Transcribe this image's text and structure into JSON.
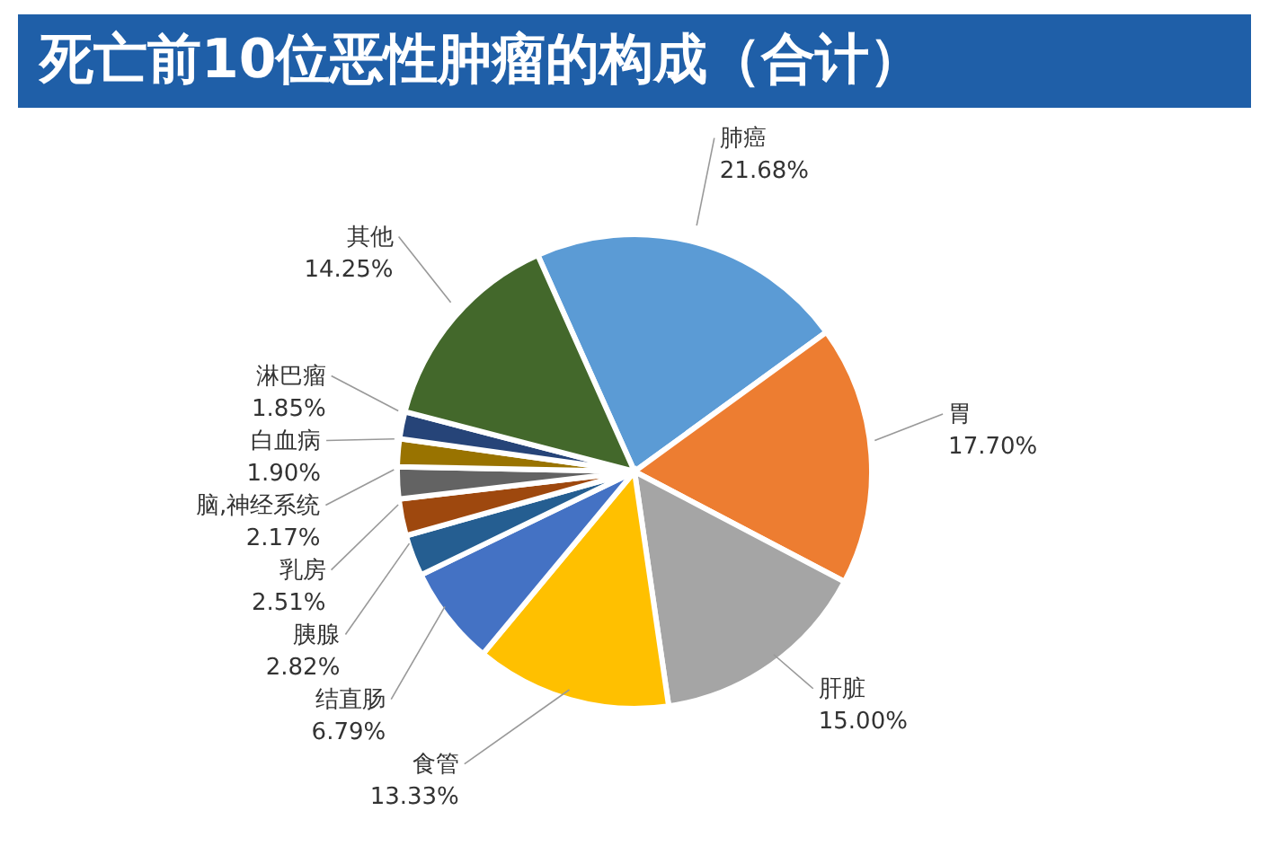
{
  "chart_data": {
    "type": "pie",
    "title": "死亡前10位恶性肿瘤的构成（合计）",
    "categories": [
      "肺癌",
      "胃",
      "肝脏",
      "食管",
      "结直肠",
      "胰腺",
      "乳房",
      "脑,神经系统",
      "白血病",
      "淋巴瘤",
      "其他"
    ],
    "values": [
      21.68,
      17.7,
      15.0,
      13.33,
      6.79,
      2.82,
      2.51,
      2.17,
      1.9,
      1.85,
      14.25
    ],
    "value_labels": [
      "21.68%",
      "17.70%",
      "15.00%",
      "13.33%",
      "6.79%",
      "2.82%",
      "2.51%",
      "2.17%",
      "1.90%",
      "1.85%",
      "14.25%"
    ],
    "colors": [
      "#5b9bd5",
      "#ed7d31",
      "#a5a5a5",
      "#ffc000",
      "#4472c4",
      "#255e91",
      "#9e480e",
      "#636363",
      "#997300",
      "#264478",
      "#43682b"
    ]
  }
}
